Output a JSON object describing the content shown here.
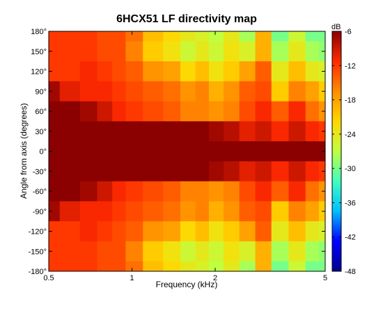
{
  "chart_data": {
    "type": "heatmap",
    "subtype": "filled-contour",
    "title": "6HCX51 LF directivity map",
    "xlabel": "Frequency (kHz)",
    "ylabel": "Angle from axis (degrees)",
    "x_scale": "log",
    "xlim": [
      0.5,
      5
    ],
    "ylim": [
      -180,
      180
    ],
    "x_ticks": [
      0.5,
      1,
      2,
      5
    ],
    "x_tick_labels": [
      "0.5",
      "1",
      "2",
      "5"
    ],
    "y_ticks": [
      180,
      150,
      120,
      90,
      60,
      30,
      0,
      -30,
      -60,
      -90,
      -120,
      -150,
      -180
    ],
    "y_tick_labels": [
      "180°",
      "150°",
      "120°",
      "90°",
      "60°",
      "30°",
      "0°",
      "-30°",
      "-60°",
      "-90°",
      "-120°",
      "-150°",
      "-180°"
    ],
    "grid": false,
    "colorbar": {
      "unit": "dB",
      "range": [
        -48,
        -6
      ],
      "ticks": [
        -6,
        -12,
        -18,
        -24,
        -30,
        -36,
        -42,
        -48
      ],
      "tick_labels": [
        "-6",
        "-12",
        "-18",
        "-24",
        "-30",
        "-36",
        "-42",
        "-48"
      ],
      "colormap": "jet",
      "color_stops": [
        "#00008f",
        "#0000ff",
        "#00bfff",
        "#40ffbf",
        "#c0ff40",
        "#ffd700",
        "#ff8c00",
        "#ff2a00",
        "#8b0000"
      ]
    },
    "grid_frequencies_khz": [
      0.5,
      0.6,
      0.7,
      0.8,
      0.9,
      1.0,
      1.2,
      1.4,
      1.6,
      1.8,
      2.0,
      2.3,
      2.6,
      3.0,
      3.4,
      4.0,
      4.5,
      5.0
    ],
    "grid_angles_deg": [
      180,
      150,
      120,
      90,
      60,
      30,
      0,
      -30,
      -60,
      -90,
      -120,
      -150,
      -180
    ],
    "levels_db": [
      [
        -12,
        -12,
        -12,
        -13,
        -13,
        -15,
        -20,
        -22,
        -24,
        -25,
        -27,
        -24,
        -28,
        -19,
        -30,
        -26,
        -30,
        -30
      ],
      [
        -12,
        -12,
        -12,
        -13,
        -13,
        -16,
        -21,
        -23,
        -26,
        -24,
        -26,
        -23,
        -25,
        -19,
        -28,
        -24,
        -28,
        -29
      ],
      [
        -12,
        -12,
        -11,
        -12,
        -13,
        -14,
        -17,
        -18,
        -22,
        -20,
        -23,
        -21,
        -18,
        -14,
        -24,
        -20,
        -24,
        -25
      ],
      [
        -7,
        -10,
        -11,
        -11,
        -12,
        -13,
        -14,
        -15,
        -17,
        -16,
        -19,
        -17,
        -14,
        -13,
        -21,
        -16,
        -18,
        -21
      ],
      [
        -6,
        -6,
        -7,
        -9,
        -11,
        -12,
        -13,
        -14,
        -16,
        -16,
        -17,
        -16,
        -13,
        -11,
        -14,
        -11,
        -15,
        -17
      ],
      [
        -6,
        -6,
        -6,
        -6,
        -6,
        -6,
        -6,
        -6,
        -6,
        -6,
        -7,
        -8,
        -10,
        -9,
        -11,
        -9,
        -11,
        -12
      ],
      [
        -6,
        -6,
        -6,
        -6,
        -6,
        -6,
        -6,
        -6,
        -6,
        -6,
        -6,
        -6,
        -6,
        -6,
        -6,
        -6,
        -6,
        -6
      ],
      [
        -6,
        -6,
        -6,
        -6,
        -6,
        -6,
        -6,
        -6,
        -6,
        -6,
        -7,
        -8,
        -10,
        -9,
        -11,
        -9,
        -11,
        -12
      ],
      [
        -6,
        -6,
        -7,
        -9,
        -11,
        -12,
        -13,
        -14,
        -16,
        -16,
        -17,
        -16,
        -13,
        -11,
        -14,
        -11,
        -15,
        -17
      ],
      [
        -7,
        -10,
        -11,
        -11,
        -12,
        -13,
        -14,
        -15,
        -17,
        -16,
        -19,
        -17,
        -14,
        -13,
        -21,
        -16,
        -18,
        -21
      ],
      [
        -12,
        -12,
        -11,
        -12,
        -13,
        -14,
        -17,
        -18,
        -22,
        -20,
        -23,
        -21,
        -18,
        -14,
        -24,
        -20,
        -24,
        -25
      ],
      [
        -12,
        -12,
        -12,
        -13,
        -13,
        -16,
        -21,
        -23,
        -26,
        -24,
        -26,
        -23,
        -25,
        -19,
        -28,
        -24,
        -28,
        -29
      ],
      [
        -12,
        -12,
        -12,
        -13,
        -13,
        -15,
        -20,
        -22,
        -24,
        -25,
        -27,
        -24,
        -28,
        -19,
        -30,
        -26,
        -30,
        -30
      ]
    ]
  }
}
